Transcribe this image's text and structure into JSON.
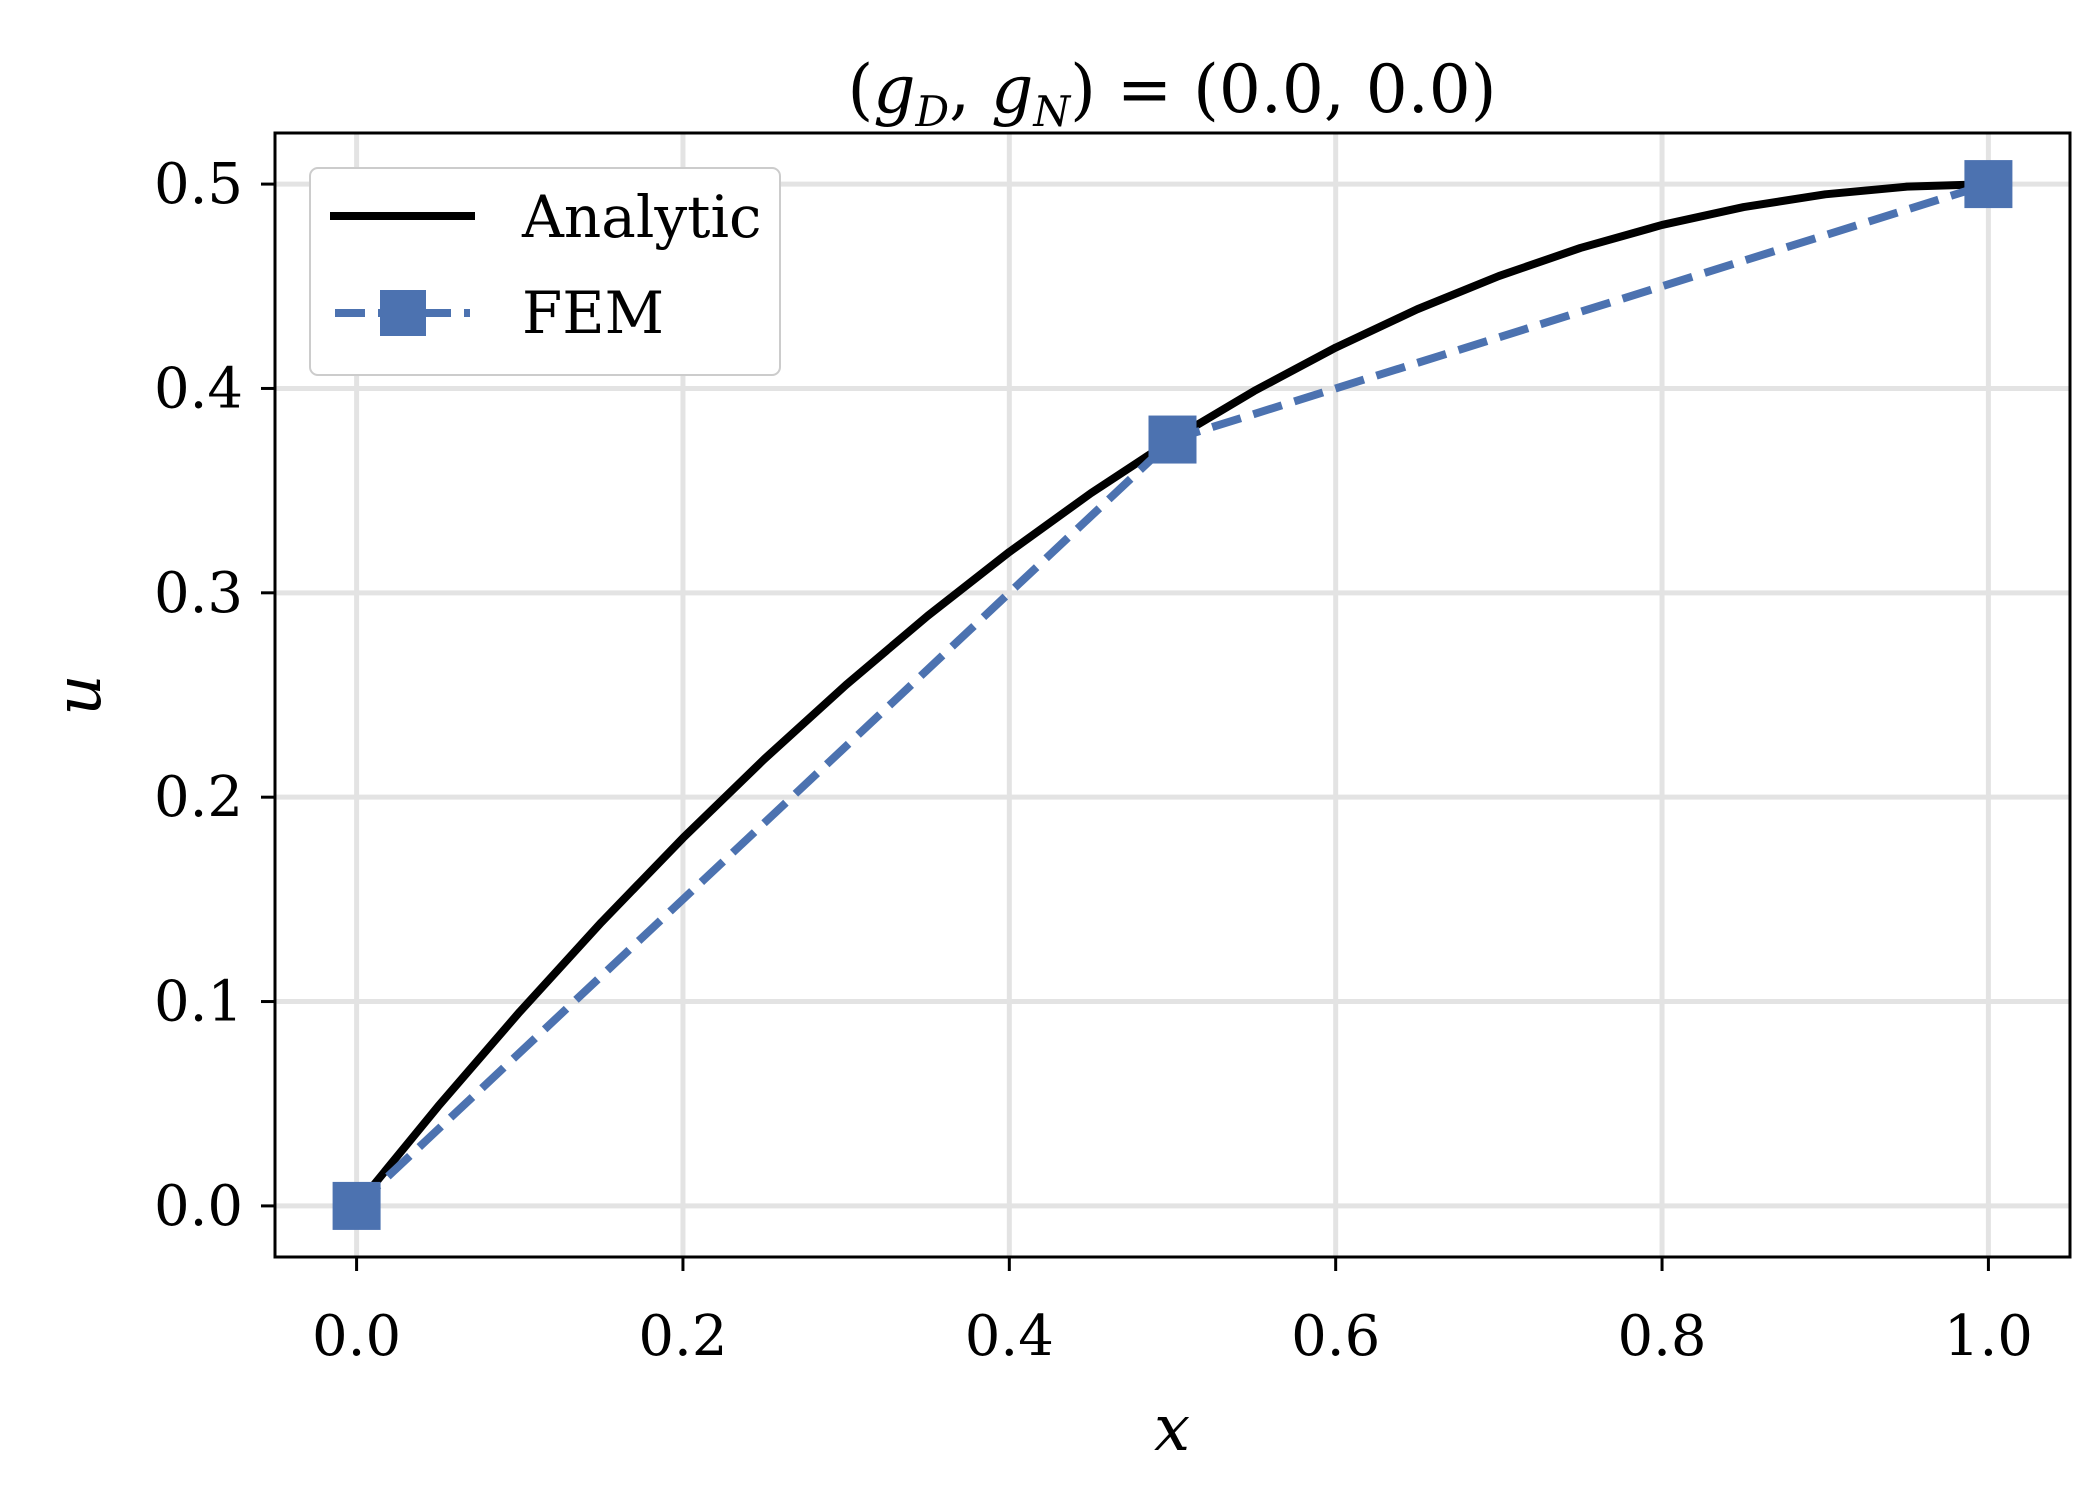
{
  "chart_data": {
    "type": "line",
    "title": "(g_D, g_N) = (0.0, 0.0)",
    "title_parts": {
      "open": "(",
      "g1": "g",
      "sub1": "D",
      "comma": ", ",
      "g2": "g",
      "sub2": "N",
      "close": ")",
      "equals": " = ",
      "values": "(0.0, 0.0)"
    },
    "xlabel": "x",
    "ylabel": "u",
    "xlim": [
      -0.05,
      1.05
    ],
    "ylim": [
      -0.025,
      0.525
    ],
    "xticks": [
      0.0,
      0.2,
      0.4,
      0.6,
      0.8,
      1.0
    ],
    "xtick_labels": [
      "0.0",
      "0.2",
      "0.4",
      "0.6",
      "0.8",
      "1.0"
    ],
    "yticks": [
      0.0,
      0.1,
      0.2,
      0.3,
      0.4,
      0.5
    ],
    "ytick_labels": [
      "0.0",
      "0.1",
      "0.2",
      "0.3",
      "0.4",
      "0.5"
    ],
    "grid": true,
    "legend_position": "top-left",
    "series": [
      {
        "name": "Analytic",
        "style": "solid",
        "marker": "none",
        "color": "#000000",
        "x": [
          0.0,
          0.05,
          0.1,
          0.15,
          0.2,
          0.25,
          0.3,
          0.35,
          0.4,
          0.45,
          0.5,
          0.55,
          0.6,
          0.65,
          0.7,
          0.75,
          0.8,
          0.85,
          0.9,
          0.95,
          1.0
        ],
        "y": [
          0.0,
          0.04875,
          0.095,
          0.13875,
          0.18,
          0.21875,
          0.255,
          0.28875,
          0.32,
          0.34875,
          0.375,
          0.39875,
          0.42,
          0.43875,
          0.455,
          0.46875,
          0.48,
          0.48875,
          0.495,
          0.49875,
          0.5
        ]
      },
      {
        "name": "FEM",
        "style": "dashed",
        "marker": "square",
        "color": "#4c72b0",
        "x": [
          0.0,
          0.5,
          1.0
        ],
        "y": [
          0.0,
          0.375,
          0.5
        ]
      }
    ]
  }
}
